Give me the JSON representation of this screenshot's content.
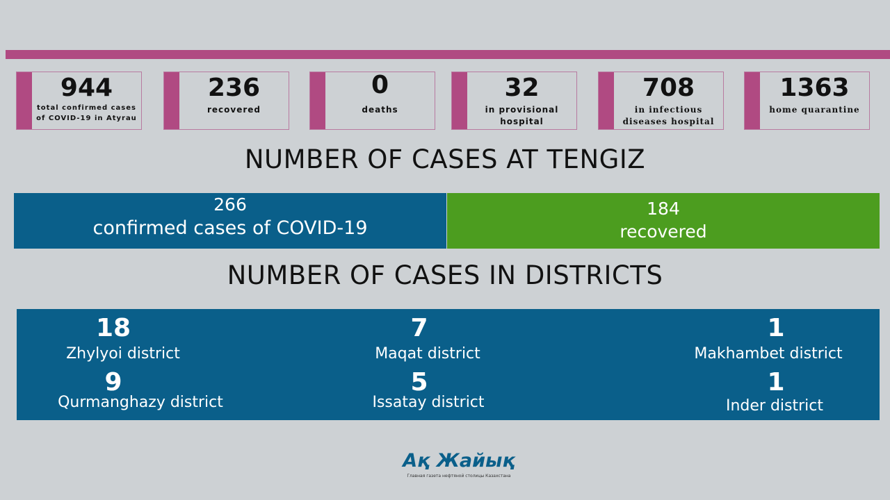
{
  "header": {
    "cards": [
      {
        "number": 944,
        "label": "total confirmed cases of COVID-19 in Atyrau"
      },
      {
        "number": 236,
        "label": "recovered"
      },
      {
        "number": 0,
        "label": "deaths"
      },
      {
        "number": 32,
        "label": "in provisional hospital"
      },
      {
        "number": 708,
        "label": "in infectious diseases hospital"
      },
      {
        "number": 1363,
        "label": "home quarantine"
      }
    ]
  },
  "tengiz": {
    "title": "NUMBER OF CASES AT TENGIZ",
    "confirmed": {
      "number": 266,
      "label": "confirmed cases of COVID-19"
    },
    "recovered": {
      "number": 184,
      "label": "recovered"
    }
  },
  "districts": {
    "title": "NUMBER OF CASES IN DISTRICTS",
    "items": [
      {
        "number": 18,
        "label": "Zhylyoi district"
      },
      {
        "number": 7,
        "label": "Maqat district"
      },
      {
        "number": 1,
        "label": "Makhambet district"
      },
      {
        "number": 9,
        "label": "Qurmanghazy district"
      },
      {
        "number": 5,
        "label": "Issatay district"
      },
      {
        "number": 1,
        "label": "Inder district"
      }
    ]
  },
  "footer": {
    "logo": "Ақ Жайық",
    "tagline": "Главная газета нефтяной столицы Казахстана"
  }
}
